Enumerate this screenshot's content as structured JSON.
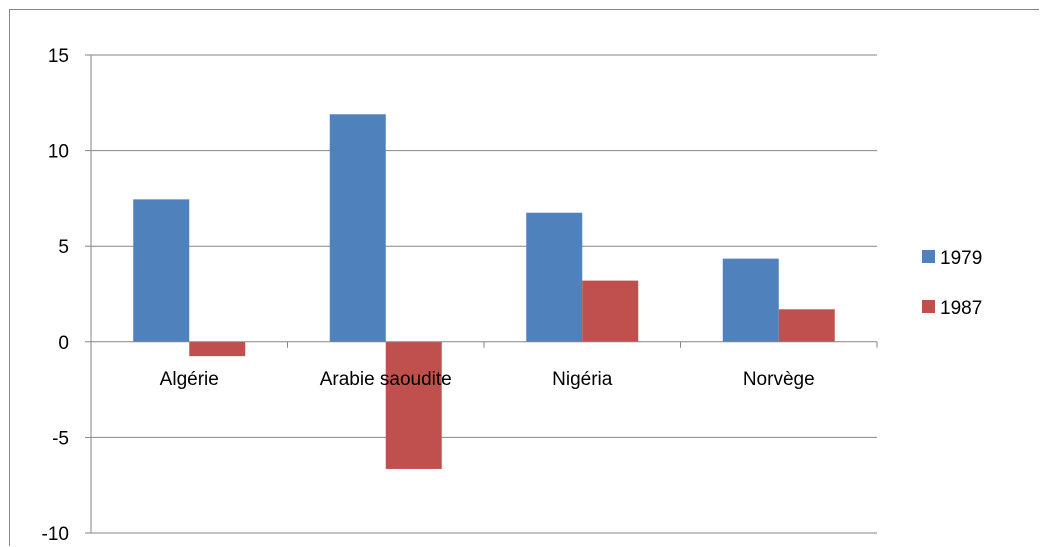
{
  "chart_data": {
    "type": "bar",
    "categories": [
      "Algérie",
      "Arabie saoudite",
      "Nigéria",
      "Norvège"
    ],
    "series": [
      {
        "name": "1979",
        "values": [
          7.45,
          11.9,
          6.75,
          4.35
        ],
        "color": "#4F81BD"
      },
      {
        "name": "1987",
        "values": [
          -0.75,
          -6.65,
          3.2,
          1.7
        ],
        "color": "#C0504D"
      }
    ],
    "y_ticks": [
      "15",
      "10",
      "5",
      "0",
      "-5",
      "-10"
    ],
    "ylim": [
      -10,
      15
    ],
    "grid": true,
    "legend_position": "right"
  }
}
